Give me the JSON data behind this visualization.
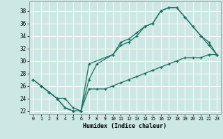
{
  "xlabel": "Humidex (Indice chaleur)",
  "bg_color": "#cde8e4",
  "grid_color": "#ffffff",
  "line_color": "#1a6e62",
  "xlim": [
    -0.5,
    23.5
  ],
  "ylim": [
    21.5,
    39.5
  ],
  "xticks": [
    0,
    1,
    2,
    3,
    4,
    5,
    6,
    7,
    8,
    9,
    10,
    11,
    12,
    13,
    14,
    15,
    16,
    17,
    18,
    19,
    20,
    21,
    22,
    23
  ],
  "yticks": [
    22,
    24,
    26,
    28,
    30,
    32,
    34,
    36,
    38
  ],
  "line1_x": [
    0,
    1,
    2,
    3,
    4,
    5,
    6,
    7,
    10,
    11,
    12,
    13,
    14,
    15,
    16,
    17,
    18,
    19,
    20,
    21,
    22,
    23
  ],
  "line1_y": [
    27,
    26,
    25,
    24,
    22.5,
    22,
    22,
    29.5,
    31,
    33,
    33.5,
    34.5,
    35.5,
    36,
    38,
    38.5,
    38.5,
    37,
    35.5,
    34,
    33,
    31
  ],
  "line2_x": [
    0,
    1,
    2,
    3,
    4,
    5,
    6,
    7,
    8,
    10,
    11,
    12,
    13,
    14,
    15,
    16,
    17,
    18,
    19,
    20,
    21,
    22,
    23
  ],
  "line2_y": [
    27,
    26,
    25,
    24,
    22.5,
    22,
    22,
    27.0,
    29.5,
    31,
    32.5,
    33,
    34,
    35.5,
    36,
    38,
    38.5,
    38.5,
    37,
    35.5,
    34,
    32.5,
    31
  ],
  "line3_x": [
    1,
    2,
    3,
    4,
    5,
    6,
    7,
    8,
    9,
    10,
    11,
    12,
    13,
    14,
    15,
    16,
    17,
    18,
    19,
    20,
    21,
    22,
    23
  ],
  "line3_y": [
    26,
    25,
    24,
    24,
    22.5,
    22,
    25.5,
    25.5,
    25.5,
    26,
    26.5,
    27,
    27.5,
    28,
    28.5,
    29,
    29.5,
    30,
    30.5,
    30.5,
    30.5,
    31,
    31
  ]
}
